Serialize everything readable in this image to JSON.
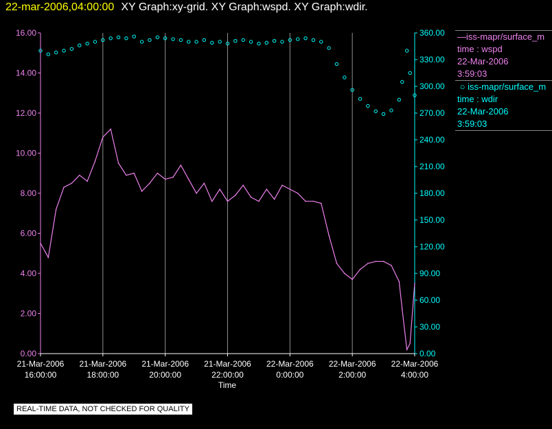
{
  "header": {
    "date": "22-mar-2006,04:00:00",
    "graphs": "XY Graph:xy-grid.  XY Graph:wspd.  XY Graph:wdir."
  },
  "legend": {
    "wspd": {
      "name": "iss-mapr/surface_m",
      "xlabel": "time : wspd",
      "date": "22-Mar-2006",
      "time": "3:59:03",
      "color": "#ee82ee"
    },
    "wdir": {
      "name": "iss-mapr/surface_m",
      "xlabel": "time : wdir",
      "date": "22-Mar-2006",
      "time": "3:59:03",
      "color": "#00ffff"
    }
  },
  "disclaimer": "REAL-TIME DATA, NOT CHECKED FOR QUALITY",
  "chart_data": {
    "type": "line",
    "xlabel": "Time",
    "x_ticks": [
      {
        "date": "21-Mar-2006",
        "time": "16:00:00",
        "hour": 0
      },
      {
        "date": "21-Mar-2006",
        "time": "18:00:00",
        "hour": 2
      },
      {
        "date": "21-Mar-2006",
        "time": "20:00:00",
        "hour": 4
      },
      {
        "date": "21-Mar-2006",
        "time": "22:00:00",
        "hour": 6
      },
      {
        "date": "22-Mar-2006",
        "time": "0:00:00",
        "hour": 8
      },
      {
        "date": "22-Mar-2006",
        "time": "2:00:00",
        "hour": 10
      },
      {
        "date": "22-Mar-2006",
        "time": "4:00:00",
        "hour": 12
      }
    ],
    "xlim_hours": [
      0,
      12
    ],
    "y_left": {
      "ticks": [
        "0.00",
        "2.00",
        "4.00",
        "6.00",
        "8.00",
        "10.00",
        "12.00",
        "14.00",
        "16.00"
      ],
      "ylim": [
        0,
        16
      ],
      "color": "#ee82ee"
    },
    "y_right": {
      "ticks": [
        "0.00",
        "30.00",
        "60.00",
        "90.00",
        "120.00",
        "150.00",
        "180.00",
        "210.00",
        "240.00",
        "270.00",
        "300.00",
        "330.00",
        "360.00"
      ],
      "ylim": [
        0,
        360
      ],
      "color": "#00ffff"
    },
    "grid": "vertical",
    "series": [
      {
        "name": "time : wspd",
        "style": "line",
        "color": "#ee82ee",
        "axis": "left",
        "x_hours": [
          0.0,
          0.25,
          0.5,
          0.75,
          1.0,
          1.25,
          1.5,
          1.75,
          2.0,
          2.25,
          2.5,
          2.75,
          3.0,
          3.25,
          3.5,
          3.75,
          4.0,
          4.25,
          4.5,
          4.75,
          5.0,
          5.25,
          5.5,
          5.75,
          6.0,
          6.25,
          6.5,
          6.75,
          7.0,
          7.25,
          7.5,
          7.75,
          8.0,
          8.25,
          8.5,
          8.75,
          9.0,
          9.25,
          9.5,
          9.75,
          10.0,
          10.25,
          10.5,
          10.75,
          11.0,
          11.25,
          11.5,
          11.6,
          11.75,
          11.85,
          12.0
        ],
        "values": [
          5.5,
          4.8,
          7.2,
          8.3,
          8.5,
          8.9,
          8.6,
          9.6,
          10.8,
          11.2,
          9.5,
          8.9,
          9.0,
          8.1,
          8.5,
          9.0,
          8.7,
          8.8,
          9.4,
          8.7,
          8.0,
          8.5,
          7.6,
          8.2,
          7.6,
          7.9,
          8.4,
          7.8,
          7.6,
          8.2,
          7.7,
          8.4,
          8.2,
          8.0,
          7.6,
          7.6,
          7.5,
          5.9,
          4.5,
          4.0,
          3.7,
          4.2,
          4.5,
          4.6,
          4.6,
          4.4,
          3.6,
          2.2,
          0.2,
          0.5,
          3.5
        ]
      },
      {
        "name": "time : wdir",
        "style": "scatter",
        "color": "#00ffff",
        "axis": "right",
        "x_hours": [
          0.0,
          0.25,
          0.5,
          0.75,
          1.0,
          1.25,
          1.5,
          1.75,
          2.0,
          2.25,
          2.5,
          2.75,
          3.0,
          3.25,
          3.5,
          3.75,
          4.0,
          4.25,
          4.5,
          4.75,
          5.0,
          5.25,
          5.5,
          5.75,
          6.0,
          6.25,
          6.5,
          6.75,
          7.0,
          7.25,
          7.5,
          7.75,
          8.0,
          8.25,
          8.5,
          8.75,
          9.0,
          9.25,
          9.5,
          9.75,
          10.0,
          10.25,
          10.5,
          10.75,
          11.0,
          11.25,
          11.5,
          11.6,
          11.75,
          11.85,
          12.0
        ],
        "values": [
          340,
          336,
          338,
          340,
          342,
          346,
          348,
          350,
          352,
          354,
          355,
          354,
          356,
          350,
          352,
          355,
          354,
          353,
          352,
          350,
          350,
          352,
          349,
          350,
          348,
          351,
          352,
          350,
          348,
          349,
          351,
          350,
          352,
          353,
          354,
          352,
          350,
          343,
          325,
          310,
          296,
          286,
          278,
          272,
          269,
          273,
          285,
          305,
          340,
          315,
          290
        ]
      }
    ]
  }
}
